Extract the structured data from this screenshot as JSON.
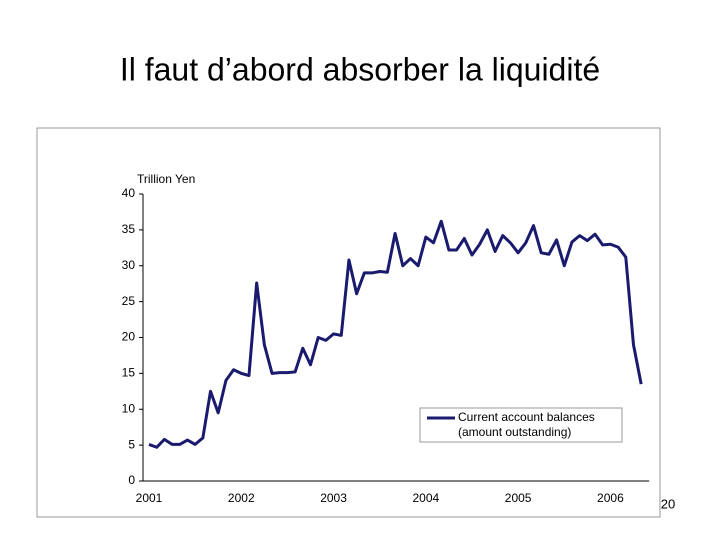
{
  "title": "Il faut d’abord absorber la liquidité",
  "page_number": "20",
  "chart_data": {
    "type": "line",
    "y_label": "Trillion Yen",
    "categories": [
      "2001",
      null,
      null,
      null,
      null,
      null,
      null,
      null,
      null,
      null,
      null,
      null,
      "2002",
      null,
      null,
      null,
      null,
      null,
      null,
      null,
      null,
      null,
      null,
      null,
      "2003",
      null,
      null,
      null,
      null,
      null,
      null,
      null,
      null,
      null,
      null,
      null,
      "2004",
      null,
      null,
      null,
      null,
      null,
      null,
      null,
      null,
      null,
      null,
      null,
      "2005",
      null,
      null,
      null,
      null,
      null,
      null,
      null,
      null,
      null,
      null,
      null,
      "2006",
      null,
      null,
      null,
      null
    ],
    "series": [
      {
        "name": "Current account balances",
        "color": "#1a1a6e",
        "values": [
          5.1,
          4.7,
          5.8,
          5.1,
          5.1,
          5.7,
          5.1,
          6.0,
          12.5,
          9.5,
          14.0,
          15.5,
          15.0,
          14.7,
          27.6,
          19.0,
          15.0,
          15.1,
          15.1,
          15.2,
          18.5,
          16.2,
          20.0,
          19.6,
          20.5,
          20.3,
          30.8,
          26.1,
          29.0,
          29.0,
          29.2,
          29.1,
          34.5,
          30.0,
          31.0,
          30.0,
          34.0,
          33.2,
          36.2,
          32.2,
          32.2,
          33.8,
          31.5,
          33.0,
          35.0,
          32.0,
          34.2,
          33.2,
          31.8,
          33.2,
          35.6,
          31.8,
          31.6,
          33.6,
          30.0,
          33.3,
          34.2,
          33.5,
          34.4,
          32.9,
          33.0,
          32.6,
          31.2,
          19.0,
          13.5
        ]
      }
    ],
    "legend_note": "(amount outstanding)",
    "legend_position": "lower right",
    "ylim": [
      0,
      40
    ],
    "yticks": [
      0,
      5,
      10,
      15,
      20,
      25,
      30,
      35,
      40
    ],
    "grid": false
  }
}
